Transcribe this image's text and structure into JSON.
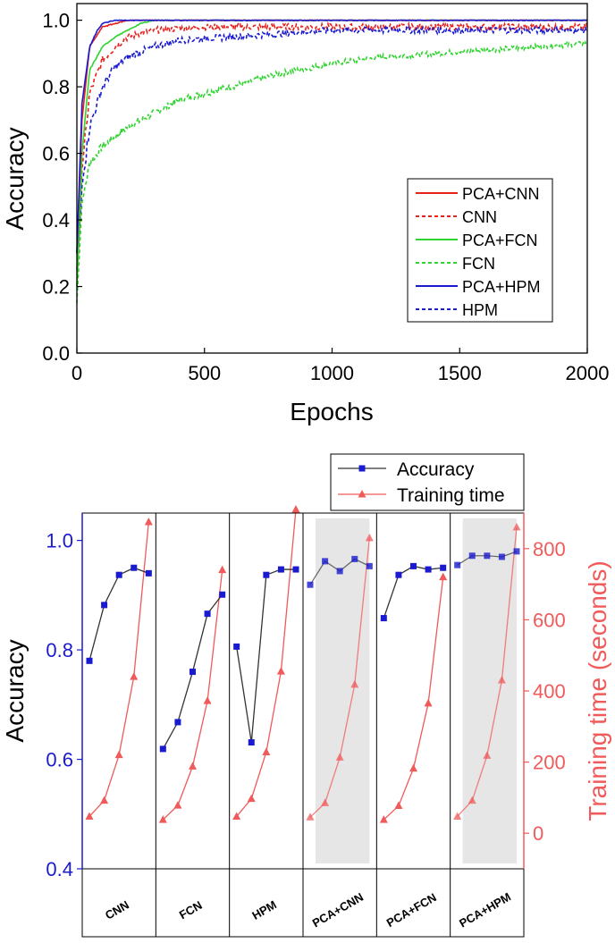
{
  "colors": {
    "cnn": "#e8201c",
    "fcn": "#2fd42f",
    "hpm": "#1a1ad0",
    "accuracy_axis": "#1a1ad0",
    "time_axis": "#f05a5a",
    "shade": "#e6e6e6"
  },
  "chart_data": [
    {
      "type": "line",
      "xlabel": "Epochs",
      "ylabel": "Accuracy",
      "xlim": [
        0,
        2000
      ],
      "ylim": [
        0.0,
        1.05
      ],
      "xticks": [
        "0",
        "500",
        "1000",
        "1500",
        "2000"
      ],
      "yticks": [
        "0.0",
        "0.2",
        "0.4",
        "0.6",
        "0.8",
        "1.0"
      ],
      "legend_position": "middle-right",
      "series": [
        {
          "name": "PCA+CNN",
          "style": "solid",
          "color_key": "cnn",
          "x": [
            0,
            20,
            50,
            100,
            150,
            200,
            300,
            500,
            1000,
            1500,
            2000
          ],
          "values": [
            0.3,
            0.7,
            0.92,
            0.98,
            0.99,
            1.0,
            1.0,
            1.0,
            1.0,
            1.0,
            1.0
          ]
        },
        {
          "name": "CNN",
          "style": "dashed",
          "color_key": "cnn",
          "x": [
            0,
            20,
            50,
            100,
            150,
            200,
            300,
            500,
            700,
            1000,
            1500,
            2000
          ],
          "values": [
            0.2,
            0.55,
            0.78,
            0.88,
            0.92,
            0.95,
            0.97,
            0.98,
            0.98,
            0.98,
            0.98,
            0.98
          ]
        },
        {
          "name": "PCA+FCN",
          "style": "solid",
          "color_key": "fcn",
          "x": [
            0,
            20,
            50,
            100,
            150,
            200,
            250,
            300,
            500,
            1000,
            1500,
            2000
          ],
          "values": [
            0.2,
            0.6,
            0.85,
            0.92,
            0.95,
            0.97,
            0.99,
            1.0,
            1.0,
            1.0,
            1.0,
            1.0
          ]
        },
        {
          "name": "FCN",
          "style": "dashed",
          "color_key": "fcn",
          "x": [
            0,
            20,
            50,
            100,
            200,
            300,
            400,
            500,
            600,
            700,
            800,
            1000,
            1200,
            1400,
            1600,
            1800,
            2000
          ],
          "values": [
            0.15,
            0.45,
            0.57,
            0.62,
            0.68,
            0.72,
            0.76,
            0.78,
            0.8,
            0.82,
            0.84,
            0.87,
            0.89,
            0.9,
            0.91,
            0.92,
            0.93
          ]
        },
        {
          "name": "PCA+HPM",
          "style": "solid",
          "color_key": "hpm",
          "x": [
            0,
            20,
            50,
            80,
            100,
            150,
            200,
            500,
            1000,
            1500,
            2000
          ],
          "values": [
            0.3,
            0.75,
            0.92,
            0.97,
            0.99,
            1.0,
            1.0,
            1.0,
            1.0,
            1.0,
            1.0
          ]
        },
        {
          "name": "HPM",
          "style": "dashed",
          "color_key": "hpm",
          "x": [
            0,
            20,
            50,
            100,
            150,
            200,
            300,
            400,
            600,
            800,
            1000,
            1500,
            2000
          ],
          "values": [
            0.25,
            0.5,
            0.68,
            0.8,
            0.86,
            0.89,
            0.92,
            0.94,
            0.95,
            0.96,
            0.97,
            0.97,
            0.97
          ]
        }
      ]
    },
    {
      "type": "line",
      "ylabel": "Accuracy",
      "y2label": "Training time (seconds)",
      "ylim": [
        0.4,
        1.05
      ],
      "y2lim": [
        -100,
        900
      ],
      "yticks": [
        "0.4",
        "0.6",
        "0.8",
        "1.0"
      ],
      "y2ticks": [
        "0",
        "200",
        "400",
        "600",
        "800"
      ],
      "groups": [
        "CNN",
        "FCN",
        "HPM",
        "PCA+CNN",
        "PCA+FCN",
        "PCA+HPM"
      ],
      "shaded_groups": [
        "PCA+CNN",
        "PCA+HPM"
      ],
      "legend_position": "top-right",
      "series": [
        {
          "name": "Accuracy",
          "axis": "left",
          "marker": "square",
          "line_color": "#333333",
          "marker_color_key": "accuracy_axis",
          "values": [
            [
              0.78,
              0.882,
              0.937,
              0.95,
              0.94
            ],
            [
              0.619,
              0.668,
              0.76,
              0.866,
              0.901
            ],
            [
              0.806,
              0.631,
              0.937,
              0.947,
              0.947
            ],
            [
              0.919,
              0.962,
              0.944,
              0.966,
              0.953
            ],
            [
              0.858,
              0.937,
              0.953,
              0.947,
              0.95
            ],
            [
              0.955,
              0.972,
              0.972,
              0.97,
              0.98
            ]
          ]
        },
        {
          "name": "Training time",
          "axis": "right",
          "marker": "triangle",
          "color_key": "time_axis",
          "values": [
            [
              47,
              92,
              220,
              440,
              875
            ],
            [
              38,
              78,
              188,
              372,
              740
            ],
            [
              47,
              97,
              228,
              455,
              910
            ],
            [
              45,
              85,
              213,
              418,
              830
            ],
            [
              38,
              77,
              182,
              365,
              720
            ],
            [
              47,
              92,
              218,
              430,
              860
            ]
          ]
        }
      ]
    }
  ]
}
